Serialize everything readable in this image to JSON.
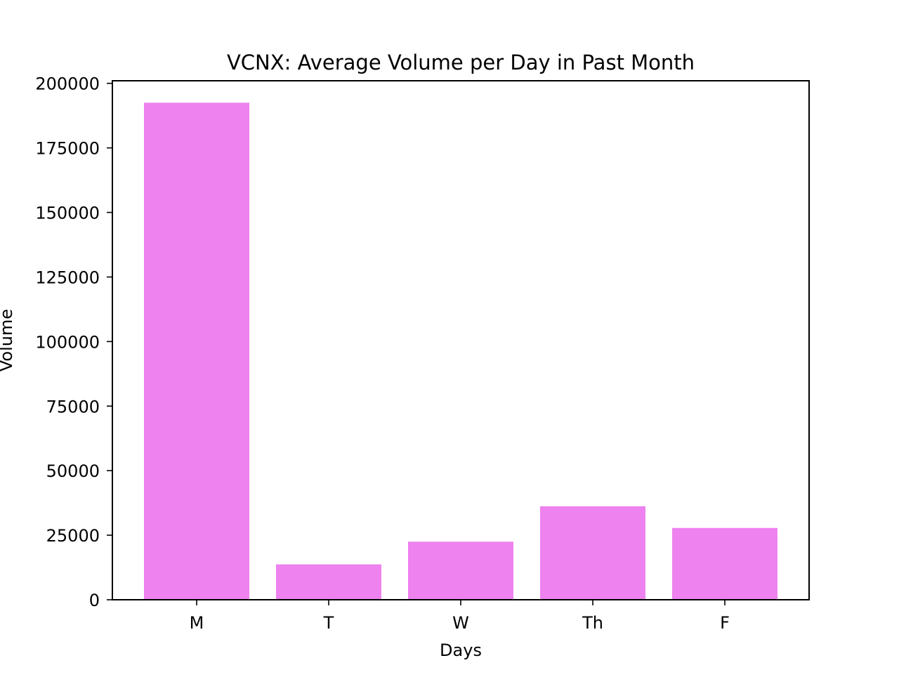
{
  "chart_data": {
    "type": "bar",
    "title": "VCNX: Average Volume per Day in Past Month",
    "xlabel": "Days",
    "ylabel": "Volume",
    "categories": [
      "M",
      "T",
      "W",
      "Th",
      "F"
    ],
    "values": [
      192500,
      13700,
      22500,
      36200,
      27800
    ],
    "ylim": [
      0,
      201000
    ],
    "yticks": [
      0,
      25000,
      50000,
      75000,
      100000,
      125000,
      150000,
      175000,
      200000
    ],
    "ytick_labels": [
      "0",
      "25000",
      "50000",
      "75000",
      "100000",
      "125000",
      "150000",
      "175000",
      "200000"
    ],
    "bar_color": "#ee82ee",
    "grid": false,
    "legend": "none"
  }
}
